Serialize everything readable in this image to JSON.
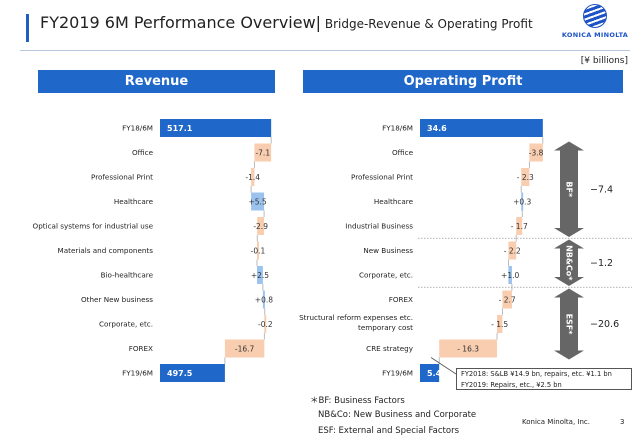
{
  "title": {
    "main": "FY2019 6M Performance Overview|",
    "sub": " Bridge-Revenue & Operating Profit"
  },
  "logo_text": "KONICA MINOLTA",
  "unit": "[¥ billions]",
  "colors": {
    "total": "#1f67c9",
    "decrease": "#f9cdb0",
    "increase": "#9cc3ee",
    "header": "#1f67c9",
    "brace": "#666666"
  },
  "chart_data": [
    {
      "type": "bar",
      "title": "Revenue",
      "categories": [
        "FY18/6M",
        "Office",
        "Professional Print",
        "Healthcare",
        "Optical systems for industrial use",
        "Materials and components",
        "Bio-healthcare",
        "Other New business",
        "Corporate, etc.",
        "FOREX",
        "FY19/6M"
      ],
      "values": [
        517.1,
        -7.1,
        -1.4,
        5.5,
        -2.9,
        -0.1,
        2.5,
        0.8,
        -0.2,
        -16.7,
        497.5
      ],
      "labels": [
        "517.1",
        "-7.1",
        "-1.4",
        "+5.5",
        "-2.9",
        "-0.1",
        "+2.5",
        "+0.8",
        "-0.2",
        "-16.7",
        "497.5"
      ],
      "kinds": [
        "total",
        "delta",
        "delta",
        "delta",
        "delta",
        "delta",
        "delta",
        "delta",
        "delta",
        "delta",
        "total"
      ]
    },
    {
      "type": "bar",
      "title": "Operating Profit",
      "categories": [
        "FY18/6M",
        "Office",
        "Professional Print",
        "Healthcare",
        "Industrial Business",
        "New Business",
        "Corporate, etc.",
        "FOREX",
        "Structural reform expenses etc. temporary cost",
        "CRE strategy",
        "FY19/6M"
      ],
      "values": [
        34.6,
        -3.8,
        -2.3,
        0.3,
        -1.7,
        -2.2,
        1.0,
        -2.7,
        -1.5,
        -16.3,
        5.4
      ],
      "labels": [
        "34.6",
        "-3.8",
        "- 2.3",
        "+0.3",
        "- 1.7",
        "- 2.2",
        "+1.0",
        "- 2.7",
        "- 1.5",
        "- 16.3",
        "5.4"
      ],
      "kinds": [
        "total",
        "delta",
        "delta",
        "delta",
        "delta",
        "delta",
        "delta",
        "delta",
        "delta",
        "delta",
        "total"
      ],
      "groups": [
        {
          "label": "BF*",
          "value": "−7.4",
          "rows": [
            1,
            4
          ]
        },
        {
          "label": "NB&Co*",
          "value": "−1.2",
          "rows": [
            5,
            6
          ]
        },
        {
          "label": "ESF*",
          "value": "−20.6",
          "rows": [
            7,
            9
          ]
        }
      ]
    }
  ],
  "note": {
    "line1": "FY2018: S&LB ¥14.9 bn, repairs, etc. ¥1.1 bn",
    "line2": "FY2019: Repairs, etc., ¥2.5 bn"
  },
  "footnotes": {
    "bf": "＊BF: Business Factors",
    "nbco": "NB&Co: New Business and Corporate",
    "esf": "ESF: External and Special Factors"
  },
  "company": "Konica Minolta, Inc.",
  "page": "3"
}
